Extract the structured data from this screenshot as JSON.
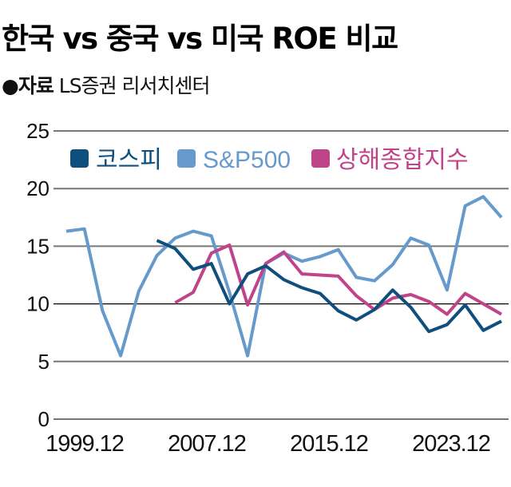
{
  "title": "한국 vs 중국 vs 미국 ROE 비교",
  "source": {
    "label": "●자료",
    "text": "LS증권 리서치센터"
  },
  "chart_data": {
    "type": "line",
    "title": "한국 vs 중국 vs 미국 ROE 비교",
    "xlabel": "",
    "ylabel": "",
    "x": [
      1999,
      2000,
      2001,
      2002,
      2003,
      2004,
      2005,
      2006,
      2007,
      2008,
      2009,
      2010,
      2011,
      2012,
      2013,
      2014,
      2015,
      2016,
      2017,
      2018,
      2019,
      2020,
      2021,
      2022,
      2023
    ],
    "x_tick_labels": [
      "1999.12",
      "2007.12",
      "2015.12",
      "2023.12"
    ],
    "y_ticks": [
      0,
      5,
      10,
      15,
      20,
      25
    ],
    "ylim": [
      0,
      25
    ],
    "grid": "horizontal",
    "legend_placement": "top",
    "series": [
      {
        "name": "코스피",
        "color": "#0e4f7d",
        "values": [
          null,
          null,
          null,
          null,
          null,
          15.5,
          14.8,
          13.0,
          13.5,
          10.0,
          12.6,
          13.3,
          12.1,
          11.4,
          10.9,
          9.4,
          8.6,
          9.5,
          11.2,
          9.7,
          7.6,
          8.2,
          9.9,
          7.7,
          8.5
        ]
      },
      {
        "name": "S&P500",
        "color": "#6699cc",
        "values": [
          16.3,
          16.5,
          9.4,
          5.5,
          11.1,
          14.2,
          15.7,
          16.3,
          15.9,
          11.0,
          5.5,
          13.5,
          14.4,
          13.7,
          14.1,
          14.7,
          12.3,
          12.0,
          13.4,
          15.7,
          15.1,
          11.2,
          18.5,
          19.3,
          17.5
        ]
      },
      {
        "name": "상해종합지수",
        "color": "#c0448a",
        "values": [
          null,
          null,
          null,
          null,
          null,
          null,
          10.1,
          11.0,
          14.4,
          15.1,
          9.9,
          13.5,
          14.5,
          12.6,
          12.5,
          12.4,
          10.7,
          9.5,
          10.5,
          10.8,
          10.2,
          9.1,
          10.9,
          10.0,
          9.1
        ]
      }
    ]
  }
}
